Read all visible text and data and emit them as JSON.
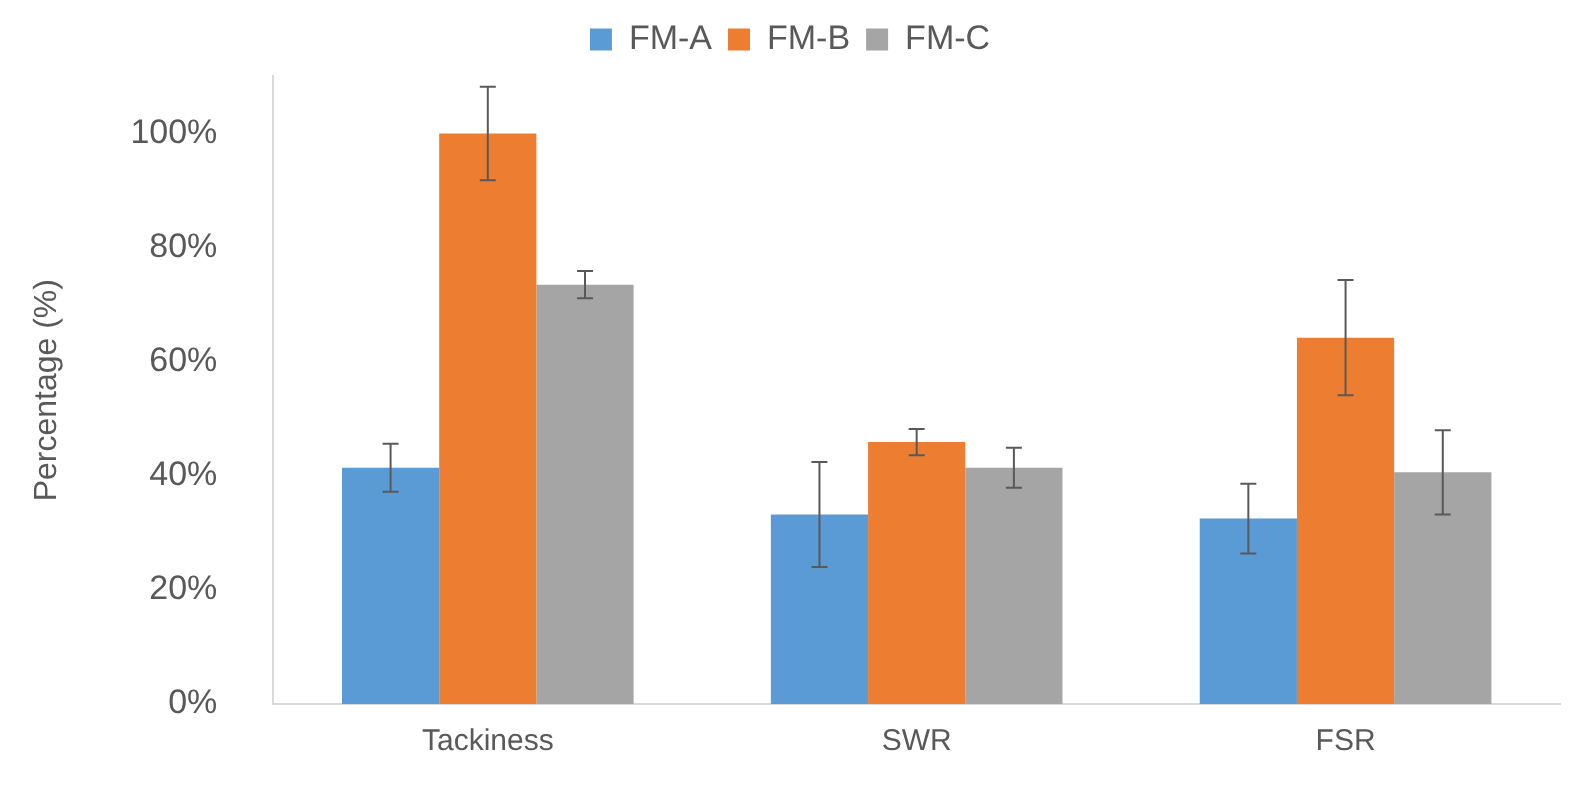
{
  "chart_data": {
    "type": "bar",
    "ylabel": "Percentage (%)",
    "categories": [
      "Tackiness",
      "SWR",
      "FSR"
    ],
    "series": [
      {
        "name": "FM-A",
        "color": "#5b9bd5",
        "values": [
          41.4,
          33.2,
          32.5
        ],
        "errors": [
          4.2,
          9.2,
          6.1
        ]
      },
      {
        "name": "FM-B",
        "color": "#ed7d31",
        "values": [
          100,
          45.9,
          64.2
        ],
        "errors": [
          8.2,
          2.3,
          10.1
        ]
      },
      {
        "name": "FM-C",
        "color": "#a5a5a5",
        "values": [
          73.5,
          41.4,
          40.6
        ],
        "errors": [
          2.4,
          3.5,
          7.4
        ]
      }
    ],
    "ylim": [
      0,
      110
    ],
    "yticks": [
      {
        "value": 0,
        "label": "0%"
      },
      {
        "value": 20,
        "label": "20%"
      },
      {
        "value": 40,
        "label": "40%"
      },
      {
        "value": 60,
        "label": "60%"
      },
      {
        "value": 80,
        "label": "80%"
      },
      {
        "value": 100,
        "label": "100%"
      }
    ],
    "grid": false,
    "legend": "top"
  }
}
